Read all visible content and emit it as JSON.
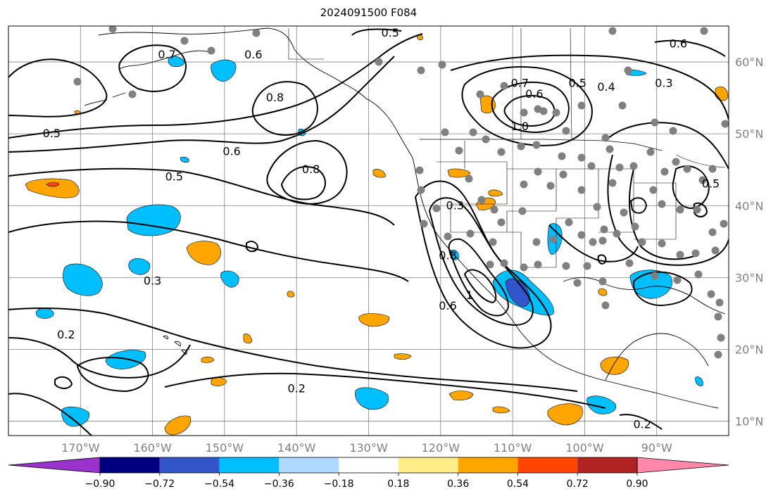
{
  "title": "2024091500 F084",
  "map": {
    "lon_range": [
      -180,
      -80
    ],
    "lat_range": [
      8,
      65
    ],
    "grid_lon": [
      -170,
      -160,
      -150,
      -140,
      -130,
      -120,
      -110,
      -100,
      -90
    ],
    "grid_lat": [
      10,
      20,
      30,
      40,
      50,
      60
    ],
    "lat_labels": [
      "10°N",
      "20°N",
      "30°N",
      "40°N",
      "50°N",
      "60°N"
    ],
    "lon_labels": [
      "170°W",
      "160°W",
      "150°W",
      "140°W",
      "130°W",
      "120°W",
      "110°W",
      "100°W",
      "90°W"
    ],
    "grid_color": "#808080",
    "contour_labels": [
      {
        "text": "0.5",
        "lon": -174,
        "lat": 50
      },
      {
        "text": "0.5",
        "lon": -157,
        "lat": 44
      },
      {
        "text": "0.6",
        "lon": -149,
        "lat": 47.5
      },
      {
        "text": "0.7",
        "lon": -158,
        "lat": 61
      },
      {
        "text": "0.6",
        "lon": -146,
        "lat": 61
      },
      {
        "text": "0.8",
        "lon": -143,
        "lat": 55
      },
      {
        "text": "0.8",
        "lon": -138,
        "lat": 45
      },
      {
        "text": "0.5",
        "lon": -127,
        "lat": 64
      },
      {
        "text": "0.3",
        "lon": -160,
        "lat": 29.5
      },
      {
        "text": "0.2",
        "lon": -172,
        "lat": 22
      },
      {
        "text": "0.2",
        "lon": -140,
        "lat": 14.5
      },
      {
        "text": "0.7",
        "lon": -109,
        "lat": 57
      },
      {
        "text": "0.6",
        "lon": -107,
        "lat": 55.5
      },
      {
        "text": "0.5",
        "lon": -101,
        "lat": 57
      },
      {
        "text": "0.4",
        "lon": -97,
        "lat": 56.5
      },
      {
        "text": "0.3",
        "lon": -89,
        "lat": 57
      },
      {
        "text": "0.6",
        "lon": -87,
        "lat": 62.5
      },
      {
        "text": "1.0",
        "lon": -109,
        "lat": 51
      },
      {
        "text": "0.3",
        "lon": -118,
        "lat": 40
      },
      {
        "text": "0.8",
        "lon": -119,
        "lat": 33
      },
      {
        "text": "1",
        "lon": -116,
        "lat": 27.5
      },
      {
        "text": "0.6",
        "lon": -119,
        "lat": 26
      },
      {
        "text": "0.2",
        "lon": -92,
        "lat": 9.5
      },
      {
        "text": "0.5",
        "lon": -82.5,
        "lat": 43
      }
    ]
  },
  "colorbar": {
    "colors": [
      "#9933cc",
      "#000080",
      "#3355cc",
      "#00bfff",
      "#add8ff",
      "#ffffff",
      "#ffee88",
      "#ffa500",
      "#ff4500",
      "#b22222",
      "#ff88aa"
    ],
    "tick_labels": [
      "−0.90",
      "−0.72",
      "−0.54",
      "−0.36",
      "−0.18",
      "0.18",
      "0.36",
      "0.54",
      "0.72",
      "0.90"
    ]
  },
  "fill_colors": {
    "neg_light": "#00bfff",
    "neg_mid": "#3355cc",
    "pos_light": "#ffa500",
    "pos_strong": "#ff4500",
    "station": "#808080"
  }
}
